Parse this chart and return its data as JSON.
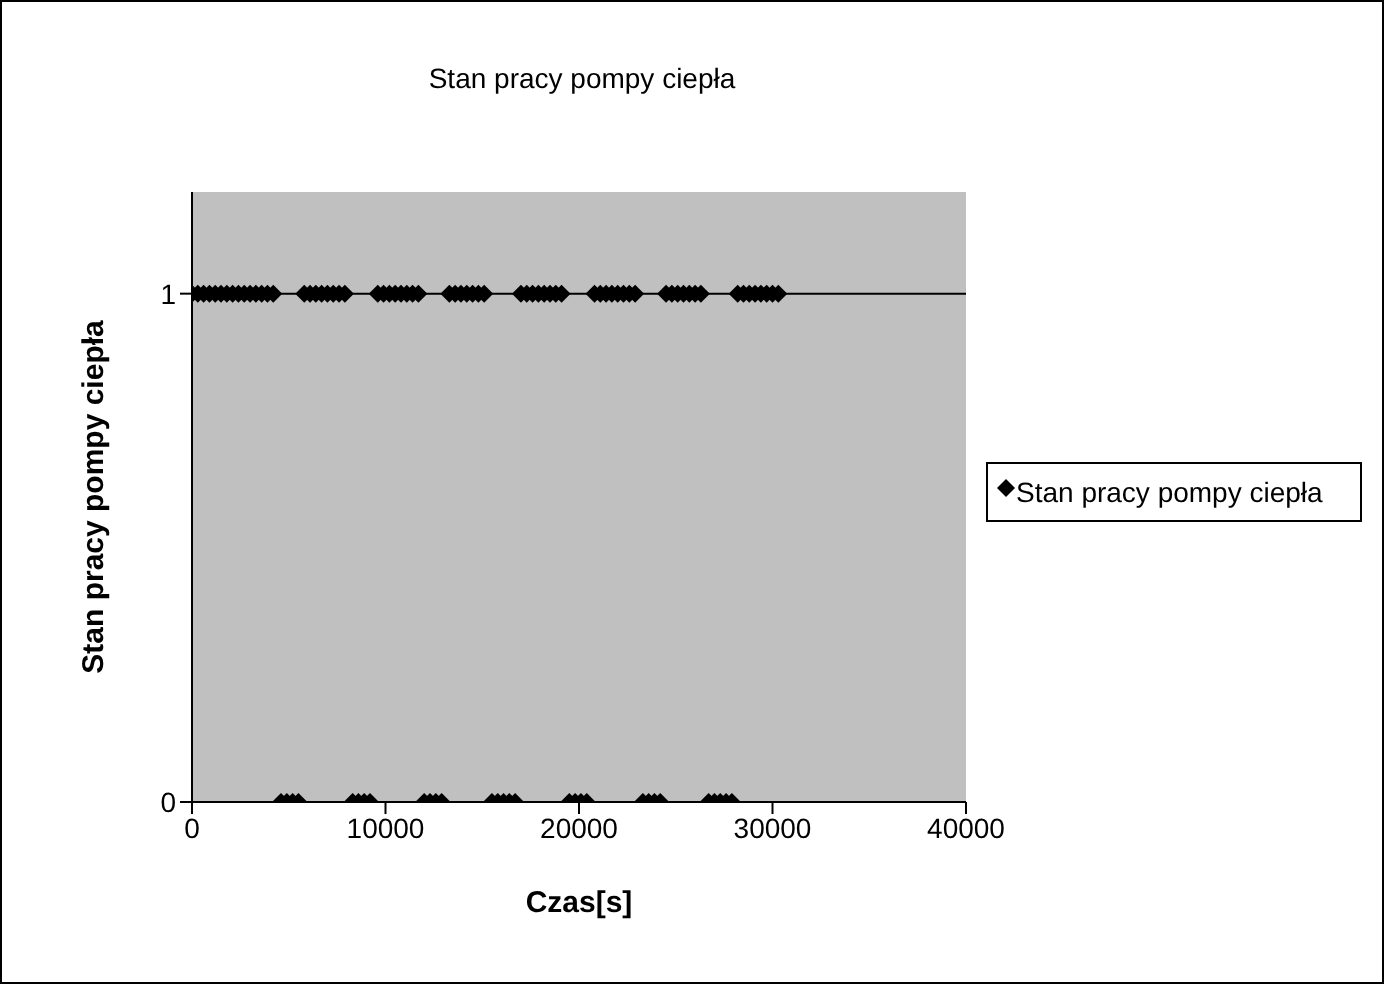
{
  "chart_data": {
    "type": "scatter",
    "title": "Stan pracy pompy ciepła",
    "xlabel": "Czas[s]",
    "ylabel": "Stan pracy pompy ciepła",
    "x": [
      0,
      300,
      600,
      900,
      1200,
      1500,
      1800,
      2100,
      2400,
      2700,
      3000,
      3300,
      3600,
      3900,
      4200,
      4600,
      4900,
      5200,
      5500,
      5800,
      6100,
      6400,
      6700,
      7000,
      7300,
      7600,
      7900,
      8300,
      8600,
      8900,
      9200,
      9600,
      9900,
      10200,
      10500,
      10800,
      11100,
      11400,
      11700,
      12000,
      12300,
      12600,
      12900,
      13300,
      13600,
      13900,
      14200,
      14500,
      14800,
      15100,
      15500,
      15800,
      16100,
      16400,
      16700,
      17000,
      17300,
      17600,
      17900,
      18200,
      18500,
      18800,
      19100,
      19500,
      19800,
      20100,
      20400,
      20800,
      21100,
      21400,
      21700,
      22000,
      22300,
      22600,
      22900,
      23300,
      23600,
      23900,
      24200,
      24500,
      24800,
      25100,
      25400,
      25700,
      26000,
      26300,
      26700,
      27000,
      27300,
      27600,
      27900,
      28200,
      28500,
      28800,
      29100,
      29400,
      29700,
      30000,
      30300
    ],
    "series": [
      {
        "name": "Stan pracy pompy ciepła",
        "color": "#000000",
        "values": [
          1,
          1,
          1,
          1,
          1,
          1,
          1,
          1,
          1,
          1,
          1,
          1,
          1,
          1,
          1,
          0,
          0,
          0,
          0,
          1,
          1,
          1,
          1,
          1,
          1,
          1,
          1,
          0,
          0,
          0,
          0,
          1,
          1,
          1,
          1,
          1,
          1,
          1,
          1,
          0,
          0,
          0,
          0,
          1,
          1,
          1,
          1,
          1,
          1,
          1,
          0,
          0,
          0,
          0,
          0,
          1,
          1,
          1,
          1,
          1,
          1,
          1,
          1,
          0,
          0,
          0,
          0,
          1,
          1,
          1,
          1,
          1,
          1,
          1,
          1,
          0,
          0,
          0,
          0,
          1,
          1,
          1,
          1,
          1,
          1,
          1,
          0,
          0,
          0,
          0,
          0,
          1,
          1,
          1,
          1,
          1,
          1,
          1,
          1
        ]
      }
    ],
    "xlim": [
      0,
      40000
    ],
    "xticks": [
      0,
      10000,
      20000,
      30000,
      40000
    ],
    "ylim": [
      0,
      1.2
    ],
    "yticks": [
      0,
      1
    ],
    "grid": "y",
    "legend": "right",
    "marker": "diamond"
  }
}
